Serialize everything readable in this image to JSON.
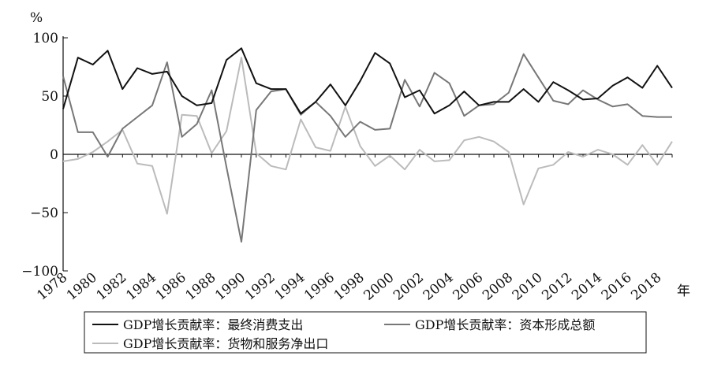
{
  "chart_data": {
    "type": "line",
    "y_unit_label": "%",
    "x_unit_label": "年",
    "ylim": [
      -100,
      100
    ],
    "y_ticks": [
      100,
      50,
      0,
      -50,
      -100
    ],
    "y_tick_labels": [
      "100",
      "50",
      "0",
      "−50",
      "−100"
    ],
    "x_tick_labels": [
      "1978",
      "1980",
      "1982",
      "1984",
      "1986",
      "1988",
      "1990",
      "1992",
      "1994",
      "1996",
      "1998",
      "2000",
      "2002",
      "2004",
      "2006",
      "2008",
      "2010",
      "2012",
      "2014",
      "2016",
      "2018"
    ],
    "grid": false,
    "legend_position": "bottom",
    "x": [
      1978,
      1979,
      1980,
      1981,
      1982,
      1983,
      1984,
      1985,
      1986,
      1987,
      1988,
      1989,
      1990,
      1991,
      1992,
      1993,
      1994,
      1995,
      1996,
      1997,
      1998,
      1999,
      2000,
      2001,
      2002,
      2003,
      2004,
      2005,
      2006,
      2007,
      2008,
      2009,
      2010,
      2011,
      2012,
      2013,
      2014,
      2015,
      2016,
      2017,
      2018,
      2019
    ],
    "series": [
      {
        "name": "GDP增长贡献率：最终消费支出",
        "color": "#111111",
        "values": [
          39,
          83,
          77,
          89,
          56,
          74,
          69,
          71,
          50,
          42,
          44,
          81,
          91,
          61,
          56,
          56,
          35,
          45,
          60,
          42,
          63,
          87,
          78,
          49,
          55,
          35,
          42,
          54,
          42,
          45,
          45,
          56,
          45,
          62,
          55,
          47,
          48,
          59,
          66,
          57,
          76,
          57
        ]
      },
      {
        "name": "GDP增长贡献率：资本形成总额",
        "color": "#777777",
        "values": [
          67,
          19,
          19,
          -2,
          22,
          32,
          42,
          79,
          15,
          26,
          55,
          -11,
          -75,
          38,
          54,
          56,
          34,
          45,
          33,
          15,
          28,
          21,
          22,
          64,
          41,
          70,
          61,
          33,
          42,
          43,
          53,
          86,
          66,
          46,
          43,
          55,
          47,
          41,
          43,
          33,
          32,
          32
        ]
      },
      {
        "name": "GDP增长贡献率：货物和服务净出口",
        "color": "#bbbbbb",
        "values": [
          -6,
          -4,
          2,
          11,
          21,
          -8,
          -10,
          -51,
          34,
          33,
          1,
          20,
          83,
          1,
          -10,
          -13,
          30,
          6,
          3,
          41,
          7,
          -10,
          -1,
          -13,
          4,
          -6,
          -5,
          12,
          15,
          11,
          2,
          -43,
          -12,
          -9,
          2,
          -2,
          4,
          0,
          -9,
          8,
          -9,
          11
        ]
      }
    ]
  }
}
